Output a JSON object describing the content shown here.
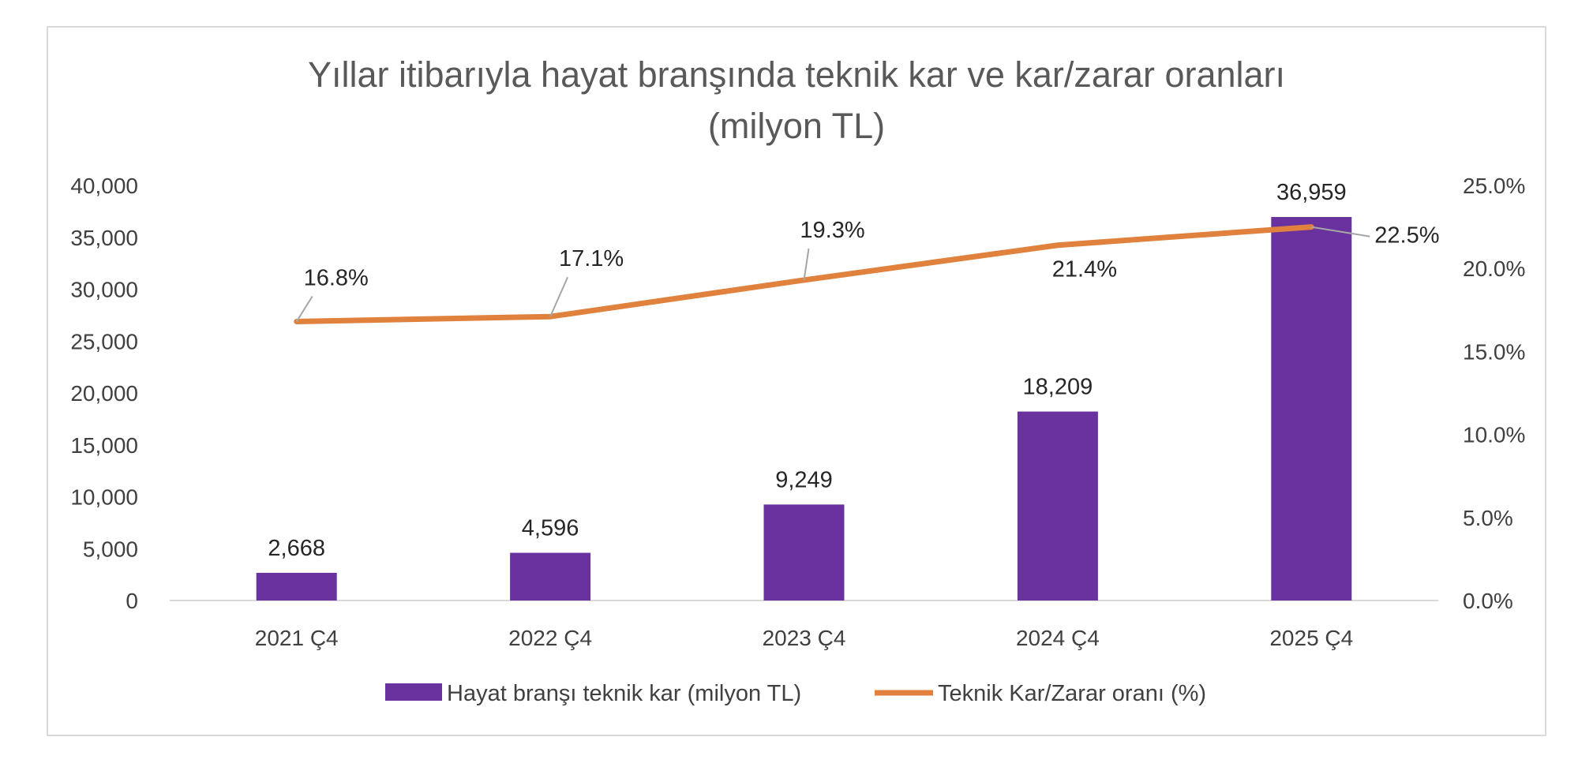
{
  "chart_data": {
    "type": "bar",
    "title": "Yıllar itibarıyla hayat branşında teknik kar ve kar/zarar oranları",
    "subtitle": "(milyon TL)",
    "categories": [
      "2021 Ç4",
      "2022 Ç4",
      "2023 Ç4",
      "2024 Ç4",
      "2025 Ç4"
    ],
    "series": [
      {
        "name": "Hayat branşı teknik kar (milyon TL)",
        "type": "bar",
        "axis": "left",
        "color": "#6a329f",
        "values": [
          2668,
          4596,
          9249,
          18209,
          36959
        ],
        "labels": [
          "2,668",
          "4,596",
          "9,249",
          "18,209",
          "36,959"
        ]
      },
      {
        "name": "Teknik Kar/Zarar oranı (%)",
        "type": "line",
        "axis": "right",
        "color": "#e0823d",
        "values": [
          16.8,
          17.1,
          19.3,
          21.4,
          22.5
        ],
        "labels": [
          "16.8%",
          "17.1%",
          "19.3%",
          "21.4%",
          "22.5%"
        ]
      }
    ],
    "ylim_left": [
      0,
      40000
    ],
    "ylim_right": [
      0,
      25
    ],
    "left_ticks": [
      "0",
      "5,000",
      "10,000",
      "15,000",
      "20,000",
      "25,000",
      "30,000",
      "35,000",
      "40,000"
    ],
    "right_ticks": [
      "0.0%",
      "5.0%",
      "10.0%",
      "15.0%",
      "20.0%",
      "25.0%"
    ],
    "grid": false,
    "legend_position": "bottom"
  }
}
